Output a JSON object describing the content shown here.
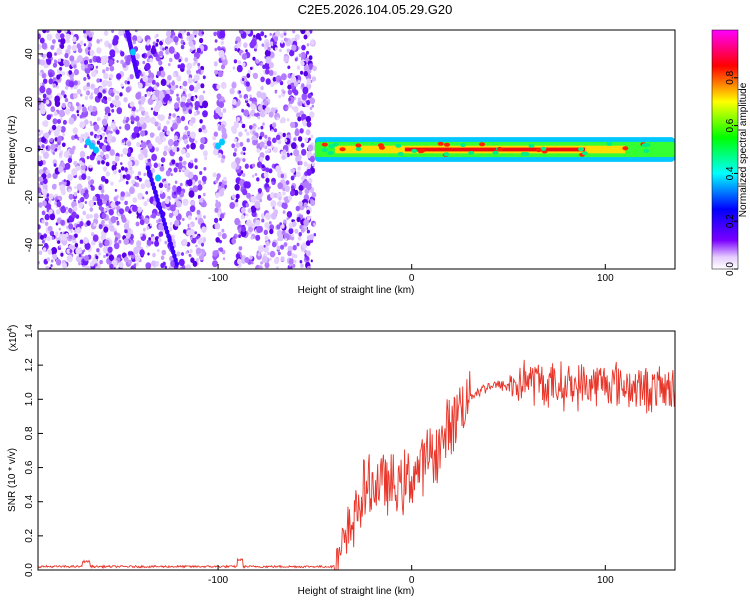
{
  "title": "C2E5.2026.104.05.29.G20",
  "chart_data": [
    {
      "type": "heatmap",
      "name": "spectrogram",
      "xlabel": "Height of straight line (km)",
      "ylabel": "Frequency (Hz)",
      "xlim": [
        -193,
        136
      ],
      "ylim": [
        -50,
        50
      ],
      "xticks": [
        -100,
        0,
        100
      ],
      "xtick_labels": [
        "-100",
        "0",
        "100"
      ],
      "yticks": [
        -40,
        -20,
        0,
        20,
        40
      ],
      "ytick_labels": [
        "-40",
        "-20",
        "0",
        "20",
        "40"
      ],
      "noise_region_x": [
        -193,
        -50
      ],
      "signal_band": {
        "x_start": -50,
        "x_end": 136,
        "center_freq": 0,
        "half_width_hz": 4
      },
      "colorbar": {
        "label": "Normalized spectral amplitude",
        "range": [
          0,
          1
        ],
        "ticks": [
          0.0,
          0.2,
          0.4,
          0.6,
          0.8
        ],
        "tick_labels": [
          "0.0",
          "0.2",
          "0.4",
          "0.6",
          "0.8"
        ],
        "colors": [
          "#ffffff",
          "#7a00ff",
          "#0000ff",
          "#00ffff",
          "#00ff00",
          "#ffff00",
          "#ff0000",
          "#ff00ff"
        ]
      }
    },
    {
      "type": "line",
      "name": "snr",
      "xlabel": "Height of straight line (km)",
      "ylabel": "SNR (10 * v/v)",
      "scale_label": "(x10",
      "scale_exp": "4",
      "xlim": [
        -193,
        136
      ],
      "ylim": [
        0.0,
        1.4
      ],
      "xticks": [
        -100,
        0,
        100
      ],
      "xtick_labels": [
        "-100",
        "0",
        "100"
      ],
      "yticks": [
        0.0,
        0.2,
        0.4,
        0.6,
        0.8,
        1.0,
        1.2,
        1.4
      ],
      "ytick_labels": [
        "0.0",
        "0.2",
        "0.4",
        "0.6",
        "0.8",
        "1.0",
        "1.2",
        "1.4"
      ],
      "color": "#e8362a",
      "series": [
        {
          "name": "SNR",
          "x": [
            -193,
            -150,
            -100,
            -60,
            -40,
            -35,
            -30,
            -25,
            -20,
            -15,
            -10,
            -5,
            0,
            5,
            10,
            15,
            20,
            25,
            30,
            35,
            40,
            45,
            50,
            55,
            60,
            65,
            70,
            80,
            90,
            100,
            110,
            120,
            130,
            136
          ],
          "y": [
            0.02,
            0.02,
            0.02,
            0.02,
            0.02,
            0.12,
            0.3,
            0.45,
            0.5,
            0.52,
            0.48,
            0.5,
            0.55,
            0.6,
            0.68,
            0.72,
            0.85,
            0.96,
            1.02,
            1.05,
            1.08,
            1.08,
            1.08,
            1.09,
            1.12,
            1.1,
            1.08,
            1.08,
            1.08,
            1.1,
            1.08,
            1.06,
            1.06,
            1.05
          ]
        }
      ]
    }
  ]
}
